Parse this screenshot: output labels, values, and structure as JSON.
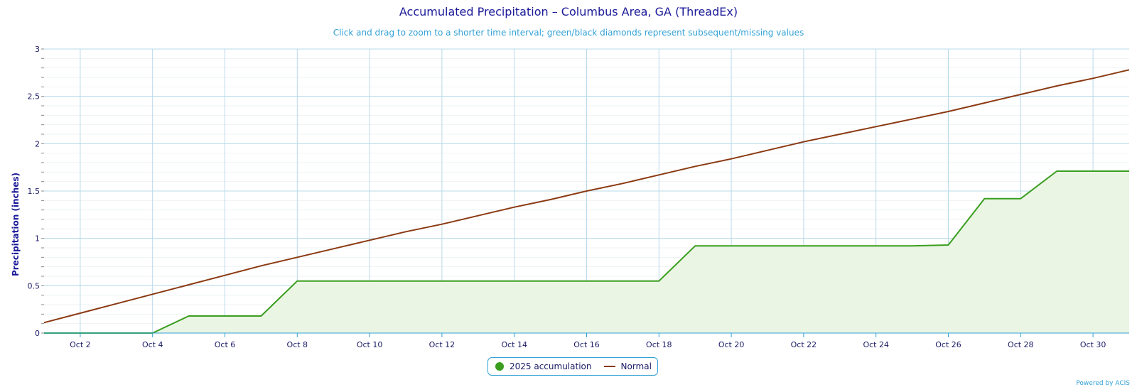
{
  "chart_data": {
    "type": "area",
    "title": "Accumulated Precipitation – Columbus Area, GA (ThreadEx)",
    "subtitle": "Click and drag to zoom to a shorter time interval; green/black diamonds represent subsequent/missing values",
    "xlabel": "",
    "ylabel": "Precipitation (inches)",
    "ylim": [
      0,
      3
    ],
    "yticks": [
      "0",
      "0.5",
      "1",
      "1.5",
      "2",
      "2.5",
      "3"
    ],
    "xlim": [
      1,
      31
    ],
    "x": [
      1,
      2,
      3,
      4,
      5,
      6,
      7,
      8,
      9,
      10,
      11,
      12,
      13,
      14,
      15,
      16,
      17,
      18,
      19,
      20,
      21,
      22,
      23,
      24,
      25,
      26,
      27,
      28,
      29,
      30,
      31
    ],
    "xticks": [
      {
        "x": 2,
        "label": "Oct 2"
      },
      {
        "x": 4,
        "label": "Oct 4"
      },
      {
        "x": 6,
        "label": "Oct 6"
      },
      {
        "x": 8,
        "label": "Oct 8"
      },
      {
        "x": 10,
        "label": "Oct 10"
      },
      {
        "x": 12,
        "label": "Oct 12"
      },
      {
        "x": 14,
        "label": "Oct 14"
      },
      {
        "x": 16,
        "label": "Oct 16"
      },
      {
        "x": 18,
        "label": "Oct 18"
      },
      {
        "x": 20,
        "label": "Oct 20"
      },
      {
        "x": 22,
        "label": "Oct 22"
      },
      {
        "x": 24,
        "label": "Oct 24"
      },
      {
        "x": 26,
        "label": "Oct 26"
      },
      {
        "x": 28,
        "label": "Oct 28"
      },
      {
        "x": 30,
        "label": "Oct 30"
      }
    ],
    "series": [
      {
        "name": "2025 accumulation",
        "color": "#3a9e1e",
        "fill": "#eaf5e4",
        "kind": "area",
        "values": [
          0,
          0,
          0,
          0,
          0.18,
          0.18,
          0.18,
          0.55,
          0.55,
          0.55,
          0.55,
          0.55,
          0.55,
          0.55,
          0.55,
          0.55,
          0.55,
          0.55,
          0.92,
          0.92,
          0.92,
          0.92,
          0.92,
          0.92,
          0.92,
          0.93,
          1.42,
          1.42,
          1.71,
          1.71,
          1.71
        ]
      },
      {
        "name": "Normal",
        "color": "#8b3a12",
        "kind": "line",
        "values": [
          0.11,
          0.21,
          0.31,
          0.41,
          0.51,
          0.61,
          0.71,
          0.8,
          0.89,
          0.98,
          1.07,
          1.15,
          1.24,
          1.33,
          1.41,
          1.5,
          1.58,
          1.67,
          1.76,
          1.84,
          1.93,
          2.02,
          2.1,
          2.18,
          2.26,
          2.34,
          2.43,
          2.52,
          2.61,
          2.69,
          2.78
        ]
      }
    ],
    "grid": true,
    "legend": "bottom-center"
  },
  "credits": "Powered by ACIS"
}
